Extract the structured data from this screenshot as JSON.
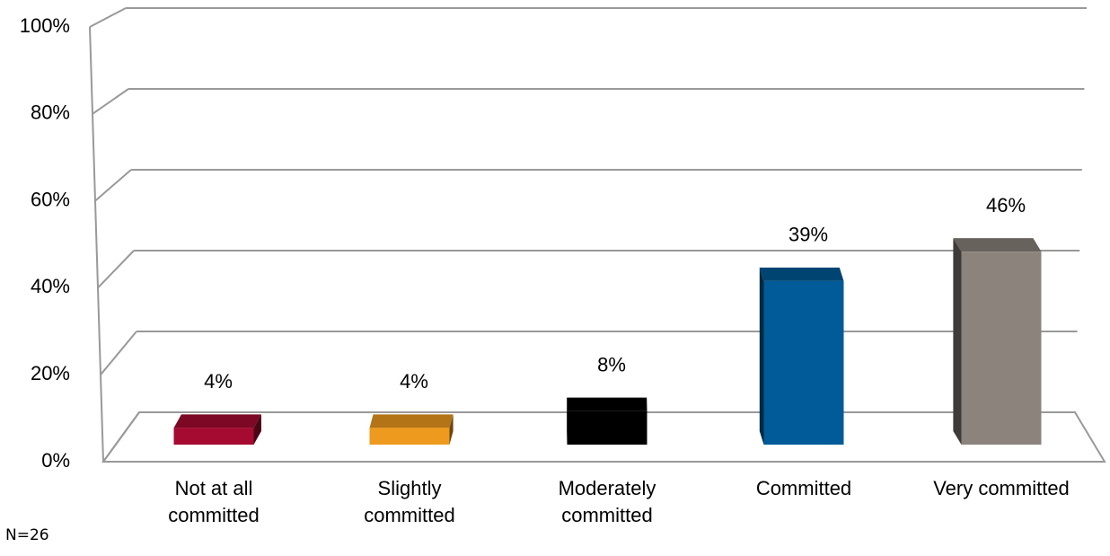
{
  "chart_data": {
    "type": "bar",
    "categories": [
      "Not at all committed",
      "Slightly committed",
      "Moderately committed",
      "Committed",
      "Very committed"
    ],
    "values": [
      4,
      4,
      8,
      39,
      46
    ],
    "value_labels": [
      "4%",
      "4%",
      "8%",
      "39%",
      "46%"
    ],
    "colors": [
      "#a50b31",
      "#ee9a1e",
      "#000000",
      "#005b98",
      "#8b837c"
    ],
    "ylim": [
      0,
      100
    ],
    "yticks": [
      {
        "value": 0,
        "label": "0%"
      },
      {
        "value": 20,
        "label": "20%"
      },
      {
        "value": 40,
        "label": "40%"
      },
      {
        "value": 60,
        "label": "60%"
      },
      {
        "value": 80,
        "label": "80%"
      },
      {
        "value": 100,
        "label": "100%"
      }
    ],
    "grid": true,
    "note": "N=26"
  }
}
